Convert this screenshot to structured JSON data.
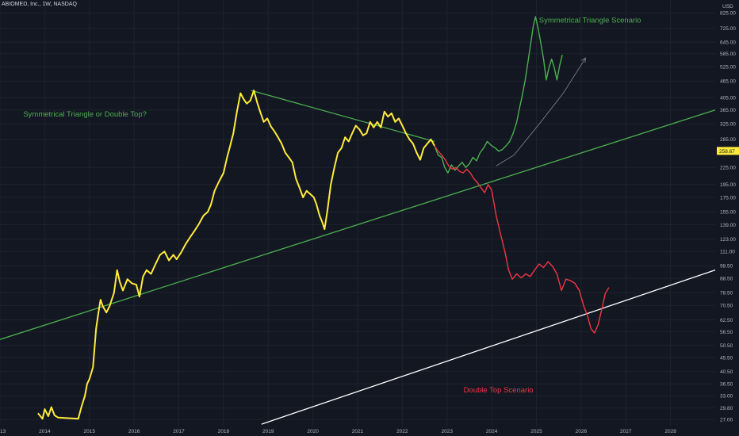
{
  "header": {
    "symbol": "ABIOMED, Inc., 1W, NASDAQ"
  },
  "colors": {
    "background": "#131722",
    "history": "#ffeb3b",
    "bull_scenario": "#4caf50",
    "bear_scenario": "#f23645",
    "trendline_green": "#4caf50",
    "trendline_white": "#ffffff",
    "price_label_bg": "#ffeb3b"
  },
  "chart_data": {
    "type": "line",
    "title": "ABIOMED, Inc., 1W, NASDAQ",
    "y_axis": {
      "unit_label": "USD",
      "scale": "log",
      "ticks": [
        "825.00",
        "725.00",
        "645.00",
        "585.00",
        "525.00",
        "465.00",
        "405.00",
        "365.00",
        "325.00",
        "285.00",
        "225.00",
        "195.00",
        "175.00",
        "155.00",
        "139.00",
        "123.00",
        "111.00",
        "98.50",
        "88.50",
        "78.50",
        "70.50",
        "62.50",
        "56.50",
        "50.50",
        "45.50",
        "40.50",
        "36.50",
        "33.00",
        "29.80",
        "27.00"
      ],
      "ylim": [
        25.5,
        920
      ]
    },
    "x_axis": {
      "ticks": [
        "2013",
        "2014",
        "2015",
        "2016",
        "2017",
        "2018",
        "2019",
        "2020",
        "2021",
        "2022",
        "2023",
        "2024",
        "2025",
        "2026",
        "2027",
        "2028"
      ],
      "xlim": [
        2013.0,
        2029.0
      ]
    },
    "current_price": "258.67",
    "series": [
      {
        "color": "#ffeb3b",
        "points": [
          [
            2013.85,
            28.5
          ],
          [
            2013.95,
            27.2
          ],
          [
            2014.0,
            29.5
          ],
          [
            2014.08,
            27.8
          ],
          [
            2014.15,
            30.0
          ],
          [
            2014.22,
            28.0
          ],
          [
            2014.3,
            27.5
          ],
          [
            2014.75,
            27.2
          ],
          [
            2014.82,
            30.0
          ],
          [
            2014.9,
            33.0
          ],
          [
            2014.95,
            36.5
          ],
          [
            2015.0,
            38.0
          ],
          [
            2015.08,
            42.0
          ],
          [
            2015.15,
            58.0
          ],
          [
            2015.2,
            66.0
          ],
          [
            2015.25,
            74.0
          ],
          [
            2015.3,
            70.0
          ],
          [
            2015.38,
            66.5
          ],
          [
            2015.45,
            70.0
          ],
          [
            2015.55,
            78.5
          ],
          [
            2015.62,
            95.0
          ],
          [
            2015.68,
            86.0
          ],
          [
            2015.75,
            80.0
          ],
          [
            2015.85,
            88.0
          ],
          [
            2015.95,
            85.0
          ],
          [
            2016.05,
            84.0
          ],
          [
            2016.12,
            76.0
          ],
          [
            2016.2,
            90.0
          ],
          [
            2016.28,
            95.0
          ],
          [
            2016.38,
            92.0
          ],
          [
            2016.48,
            100.0
          ],
          [
            2016.58,
            108.0
          ],
          [
            2016.68,
            111.0
          ],
          [
            2016.78,
            103.0
          ],
          [
            2016.88,
            108.0
          ],
          [
            2016.95,
            104.0
          ],
          [
            2017.05,
            110.0
          ],
          [
            2017.15,
            118.0
          ],
          [
            2017.25,
            125.0
          ],
          [
            2017.35,
            132.0
          ],
          [
            2017.45,
            140.0
          ],
          [
            2017.55,
            150.0
          ],
          [
            2017.65,
            155.0
          ],
          [
            2017.72,
            165.0
          ],
          [
            2017.8,
            185.0
          ],
          [
            2017.9,
            200.0
          ],
          [
            2018.0,
            215.0
          ],
          [
            2018.08,
            245.0
          ],
          [
            2018.15,
            270.0
          ],
          [
            2018.22,
            300.0
          ],
          [
            2018.3,
            360.0
          ],
          [
            2018.38,
            420.0
          ],
          [
            2018.45,
            400.0
          ],
          [
            2018.52,
            385.0
          ],
          [
            2018.6,
            395.0
          ],
          [
            2018.68,
            430.0
          ],
          [
            2018.75,
            390.0
          ],
          [
            2018.82,
            360.0
          ],
          [
            2018.9,
            330.0
          ],
          [
            2018.98,
            340.0
          ],
          [
            2019.06,
            318.0
          ],
          [
            2019.14,
            305.0
          ],
          [
            2019.22,
            290.0
          ],
          [
            2019.3,
            275.0
          ],
          [
            2019.38,
            255.0
          ],
          [
            2019.46,
            245.0
          ],
          [
            2019.54,
            235.0
          ],
          [
            2019.62,
            205.0
          ],
          [
            2019.7,
            190.0
          ],
          [
            2019.78,
            175.0
          ],
          [
            2019.86,
            185.0
          ],
          [
            2019.94,
            180.0
          ],
          [
            2020.02,
            175.0
          ],
          [
            2020.08,
            165.0
          ],
          [
            2020.15,
            150.0
          ],
          [
            2020.21,
            142.0
          ],
          [
            2020.26,
            134.0
          ],
          [
            2020.32,
            155.0
          ],
          [
            2020.4,
            195.0
          ],
          [
            2020.48,
            225.0
          ],
          [
            2020.56,
            255.0
          ],
          [
            2020.64,
            265.0
          ],
          [
            2020.72,
            290.0
          ],
          [
            2020.8,
            280.0
          ],
          [
            2020.88,
            300.0
          ],
          [
            2020.96,
            320.0
          ],
          [
            2021.04,
            310.0
          ],
          [
            2021.12,
            295.0
          ],
          [
            2021.2,
            300.0
          ],
          [
            2021.28,
            330.0
          ],
          [
            2021.36,
            315.0
          ],
          [
            2021.44,
            330.0
          ],
          [
            2021.52,
            315.0
          ],
          [
            2021.6,
            360.0
          ],
          [
            2021.68,
            345.0
          ],
          [
            2021.76,
            355.0
          ],
          [
            2021.84,
            330.0
          ],
          [
            2021.92,
            340.0
          ],
          [
            2022.0,
            320.0
          ],
          [
            2022.08,
            300.0
          ],
          [
            2022.16,
            285.0
          ],
          [
            2022.24,
            275.0
          ],
          [
            2022.32,
            255.0
          ],
          [
            2022.4,
            240.0
          ],
          [
            2022.48,
            265.0
          ],
          [
            2022.56,
            275.0
          ],
          [
            2022.64,
            285.0
          ],
          [
            2022.72,
            270.0
          ]
        ]
      },
      {
        "color": "#4caf50",
        "points": [
          [
            2022.72,
            270.0
          ],
          [
            2022.8,
            250.0
          ],
          [
            2022.88,
            245.0
          ],
          [
            2022.95,
            225.0
          ],
          [
            2023.02,
            215.0
          ],
          [
            2023.1,
            230.0
          ],
          [
            2023.18,
            220.0
          ],
          [
            2023.26,
            228.0
          ],
          [
            2023.34,
            235.0
          ],
          [
            2023.42,
            225.0
          ],
          [
            2023.5,
            232.0
          ],
          [
            2023.58,
            245.0
          ],
          [
            2023.66,
            238.0
          ],
          [
            2023.74,
            255.0
          ],
          [
            2023.82,
            265.0
          ],
          [
            2023.9,
            280.0
          ],
          [
            2024.0,
            270.0
          ],
          [
            2024.08,
            265.0
          ],
          [
            2024.16,
            258.0
          ],
          [
            2024.24,
            262.0
          ],
          [
            2024.32,
            270.0
          ],
          [
            2024.4,
            280.0
          ],
          [
            2024.48,
            300.0
          ],
          [
            2024.56,
            330.0
          ],
          [
            2024.62,
            370.0
          ],
          [
            2024.68,
            410.0
          ],
          [
            2024.75,
            470.0
          ],
          [
            2024.82,
            560.0
          ],
          [
            2024.88,
            650.0
          ],
          [
            2024.93,
            740.0
          ],
          [
            2024.98,
            800.0
          ],
          [
            2025.04,
            720.0
          ],
          [
            2025.1,
            640.0
          ],
          [
            2025.16,
            560.0
          ],
          [
            2025.22,
            470.0
          ],
          [
            2025.28,
            520.0
          ],
          [
            2025.34,
            560.0
          ],
          [
            2025.4,
            520.0
          ],
          [
            2025.46,
            470.0
          ],
          [
            2025.52,
            530.0
          ],
          [
            2025.58,
            580.0
          ]
        ]
      },
      {
        "color": "#f23645",
        "points": [
          [
            2022.72,
            270.0
          ],
          [
            2022.8,
            258.0
          ],
          [
            2022.88,
            250.0
          ],
          [
            2022.96,
            240.0
          ],
          [
            2023.04,
            228.0
          ],
          [
            2023.12,
            222.0
          ],
          [
            2023.2,
            225.0
          ],
          [
            2023.28,
            218.0
          ],
          [
            2023.36,
            215.0
          ],
          [
            2023.44,
            222.0
          ],
          [
            2023.52,
            215.0
          ],
          [
            2023.6,
            205.0
          ],
          [
            2023.68,
            198.0
          ],
          [
            2023.76,
            190.0
          ],
          [
            2023.84,
            182.0
          ],
          [
            2023.92,
            195.0
          ],
          [
            2024.0,
            186.0
          ],
          [
            2024.1,
            150.0
          ],
          [
            2024.2,
            128.0
          ],
          [
            2024.3,
            110.0
          ],
          [
            2024.38,
            95.0
          ],
          [
            2024.46,
            88.0
          ],
          [
            2024.56,
            92.0
          ],
          [
            2024.66,
            89.0
          ],
          [
            2024.76,
            92.0
          ],
          [
            2024.86,
            90.0
          ],
          [
            2024.96,
            95.0
          ],
          [
            2025.06,
            100.0
          ],
          [
            2025.16,
            97.0
          ],
          [
            2025.26,
            102.0
          ],
          [
            2025.36,
            98.0
          ],
          [
            2025.46,
            92.0
          ],
          [
            2025.56,
            80.0
          ],
          [
            2025.66,
            88.0
          ],
          [
            2025.76,
            87.0
          ],
          [
            2025.86,
            85.0
          ],
          [
            2025.96,
            80.0
          ],
          [
            2026.06,
            70.0
          ],
          [
            2026.14,
            65.0
          ],
          [
            2026.22,
            58.0
          ],
          [
            2026.3,
            56.0
          ],
          [
            2026.38,
            60.0
          ],
          [
            2026.46,
            68.0
          ],
          [
            2026.54,
            78.0
          ],
          [
            2026.62,
            82.0
          ]
        ]
      }
    ],
    "trendlines": [
      {
        "color": "#4caf50",
        "points": [
          [
            2013.0,
            53.0
          ],
          [
            2029.0,
            365.0
          ]
        ]
      },
      {
        "color": "#4caf50",
        "points": [
          [
            2018.62,
            430.0
          ],
          [
            2022.72,
            280.0
          ]
        ]
      },
      {
        "color": "#ffffff",
        "points": [
          [
            2018.85,
            26.0
          ],
          [
            2029.0,
            95.0
          ]
        ]
      }
    ],
    "projection_arrow": {
      "color": "#787b86",
      "points": [
        [
          2024.1,
          228.0
        ],
        [
          2024.5,
          250.0
        ],
        [
          2025.1,
          330.0
        ],
        [
          2025.6,
          420.0
        ],
        [
          2026.1,
          565.0
        ]
      ]
    },
    "annotations": [
      {
        "text": "Symmetrical Triangle or Double Top?",
        "color": "#4caf50",
        "at": [
          2014.9,
          345.0
        ]
      },
      {
        "text": "Symmetrical Triangle Scenario",
        "color": "#4caf50",
        "at": [
          2026.2,
          760.0
        ]
      },
      {
        "text": "Double Top Scenario",
        "color": "#f23645",
        "at": [
          2024.15,
          34.0
        ]
      }
    ]
  }
}
